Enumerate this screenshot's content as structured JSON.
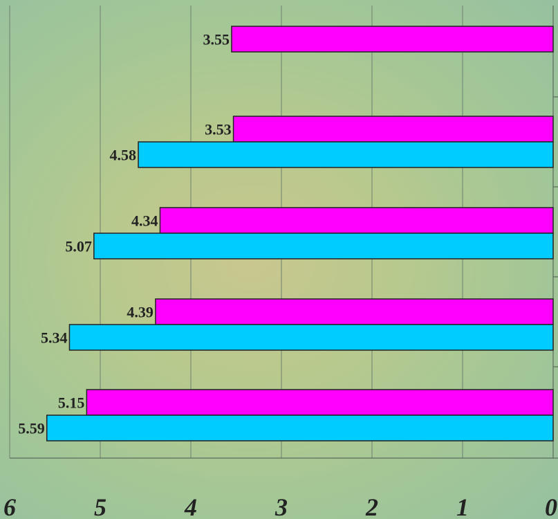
{
  "chart_data": {
    "type": "bar",
    "orientation": "horizontal",
    "x_direction": "reversed",
    "xlim": [
      0,
      6
    ],
    "x_ticks": [
      "0",
      "1",
      "2",
      "3",
      "4",
      "5",
      "6"
    ],
    "grid": true,
    "groups": [
      {
        "magenta": 3.55,
        "cyan": null
      },
      {
        "magenta": 3.53,
        "cyan": 4.58
      },
      {
        "magenta": 4.34,
        "cyan": 5.07
      },
      {
        "magenta": 4.39,
        "cyan": 5.34
      },
      {
        "magenta": 5.15,
        "cyan": 5.59
      }
    ],
    "series": [
      {
        "key": "magenta",
        "color": "#ff00ff",
        "values": [
          3.55,
          3.53,
          4.34,
          4.39,
          5.15
        ]
      },
      {
        "key": "cyan",
        "color": "#00ccff",
        "values": [
          null,
          4.58,
          5.07,
          5.34,
          5.59
        ]
      }
    ],
    "data_labels": {
      "magenta": [
        "3.55",
        "3.53",
        "4.34",
        "4.39",
        "5.15"
      ],
      "cyan": [
        "",
        "4.58",
        "5.07",
        "5.34",
        "5.59"
      ]
    }
  }
}
